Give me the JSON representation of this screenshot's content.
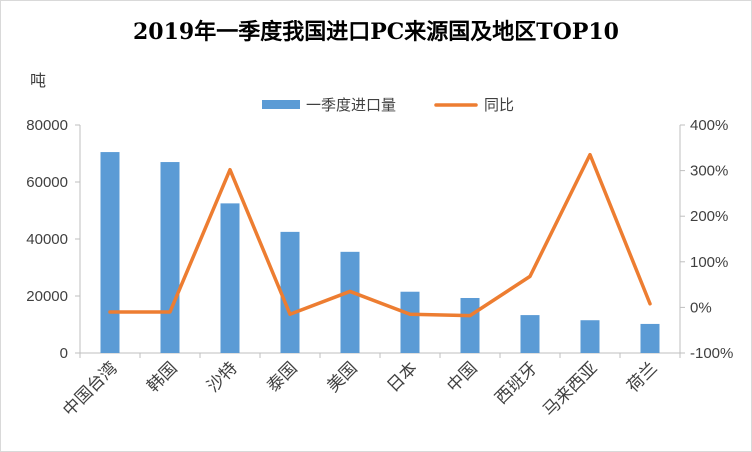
{
  "chart_data": {
    "type": "bar",
    "title": "2019年一季度我国进口PC来源国及地区TOP10",
    "ylabel": "吨",
    "categories": [
      "中国台湾",
      "韩国",
      "沙特",
      "泰国",
      "美国",
      "日本",
      "中国",
      "西班牙",
      "马来西亚",
      "荷兰"
    ],
    "ylim": [
      0,
      80000
    ],
    "y2lim": [
      -100,
      400
    ],
    "yticks": [
      "0",
      "20000",
      "40000",
      "60000",
      "80000"
    ],
    "y2ticks": [
      "-100%",
      "0%",
      "100%",
      "200%",
      "300%",
      "400%"
    ],
    "legend_position": "top",
    "grid": false,
    "series": [
      {
        "name": "一季度进口量",
        "type": "bar",
        "axis": "left",
        "color": "#5B9BD5",
        "values": [
          70500,
          67000,
          52500,
          42500,
          35500,
          21500,
          19300,
          13300,
          11500,
          10200
        ]
      },
      {
        "name": "同比",
        "type": "line",
        "axis": "right",
        "color": "#ED7D31",
        "values": [
          -10,
          -10,
          302,
          -15,
          35,
          -15,
          -18,
          68,
          335,
          8
        ]
      }
    ]
  }
}
